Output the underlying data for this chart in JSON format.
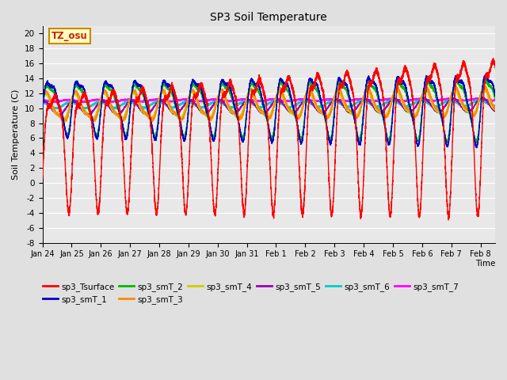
{
  "title": "SP3 Soil Temperature",
  "ylabel": "Soil Temperature (C)",
  "xlabel": "Time",
  "tz_label": "TZ_osu",
  "xlim_days": 15.5,
  "ylim": [
    -8,
    21
  ],
  "yticks": [
    -8,
    -6,
    -4,
    -2,
    0,
    2,
    4,
    6,
    8,
    10,
    12,
    14,
    16,
    18,
    20
  ],
  "background_color": "#e0e0e0",
  "plot_bg_color": "#e8e8e8",
  "series_colors": {
    "sp3_Tsurface": "#ff0000",
    "sp3_smT_1": "#0000cc",
    "sp3_smT_2": "#00bb00",
    "sp3_smT_3": "#ff8800",
    "sp3_smT_4": "#cccc00",
    "sp3_smT_5": "#9900bb",
    "sp3_smT_6": "#00cccc",
    "sp3_smT_7": "#ff00ff"
  },
  "x_tick_labels": [
    "Jan 24",
    "Jan 25",
    "Jan 26",
    "Jan 27",
    "Jan 28",
    "Jan 29",
    "Jan 30",
    "Jan 31",
    "Feb 1",
    "Feb 2",
    "Feb 3",
    "Feb 4",
    "Feb 5",
    "Feb 6",
    "Feb 7",
    "Feb 8"
  ],
  "n_points": 7200,
  "duration_days": 15.5,
  "figsize": [
    6.4,
    4.8
  ],
  "dpi": 100
}
